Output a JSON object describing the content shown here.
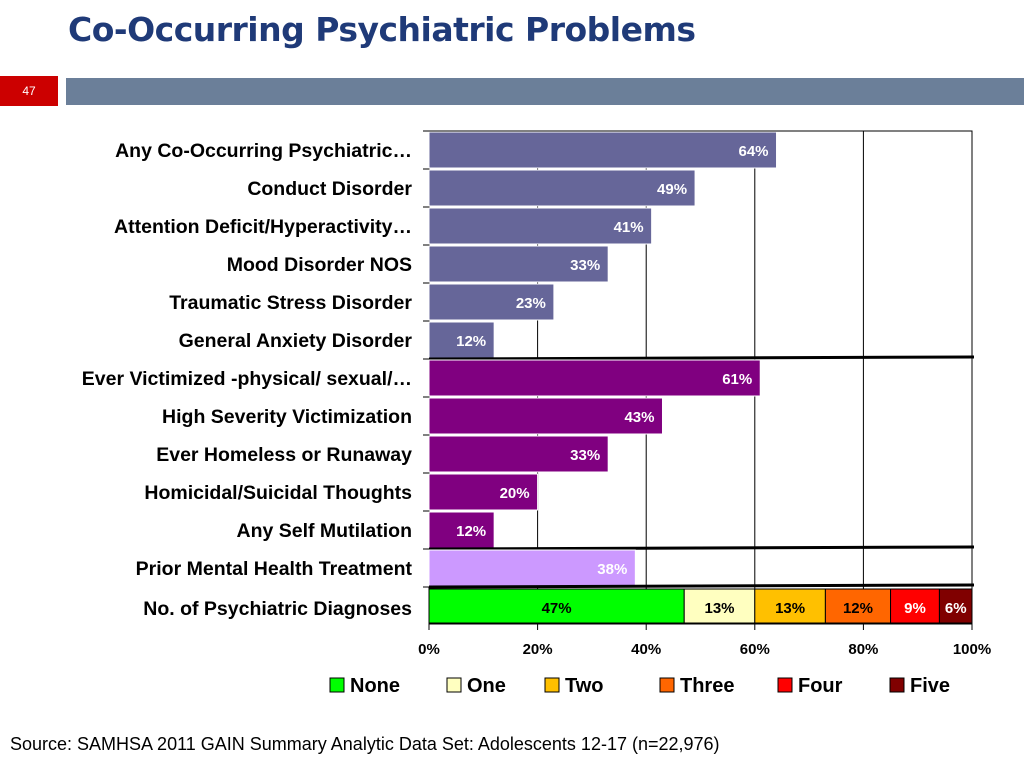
{
  "page": {
    "title": "Co-Occurring Psychiatric Problems",
    "slide_number": "47",
    "source": "Source: SAMHSA 2011 GAIN Summary Analytic Data Set: Adolescents 12-17 (n=22,976)"
  },
  "chart_data": {
    "type": "bar",
    "orientation": "horizontal",
    "xlim": [
      0,
      100
    ],
    "x_ticks": [
      "0%",
      "20%",
      "40%",
      "60%",
      "80%",
      "100%"
    ],
    "grid": true,
    "legend_position": "bottom",
    "groups": [
      {
        "color": "#666699",
        "items": [
          {
            "label": "Any Co-Occurring Psychiatric…",
            "value": 64,
            "value_label": "64%"
          },
          {
            "label": "Conduct Disorder",
            "value": 49,
            "value_label": "49%"
          },
          {
            "label": "Attention Deficit/Hyperactivity…",
            "value": 41,
            "value_label": "41%"
          },
          {
            "label": "Mood Disorder NOS",
            "value": 33,
            "value_label": "33%"
          },
          {
            "label": "Traumatic Stress Disorder",
            "value": 23,
            "value_label": "23%"
          },
          {
            "label": "General Anxiety Disorder",
            "value": 12,
            "value_label": "12%"
          }
        ]
      },
      {
        "color": "#800080",
        "items": [
          {
            "label": "Ever Victimized -physical/ sexual/…",
            "value": 61,
            "value_label": "61%"
          },
          {
            "label": "High Severity Victimization",
            "value": 43,
            "value_label": "43%"
          },
          {
            "label": "Ever Homeless or Runaway",
            "value": 33,
            "value_label": "33%"
          },
          {
            "label": "Homicidal/Suicidal Thoughts",
            "value": 20,
            "value_label": "20%"
          },
          {
            "label": "Any Self Mutilation",
            "value": 12,
            "value_label": "12%"
          }
        ]
      },
      {
        "color": "#cc99ff",
        "items": [
          {
            "label": "Prior Mental Health Treatment",
            "value": 38,
            "value_label": "38%"
          }
        ]
      }
    ],
    "stacked_row": {
      "label": "No. of Psychiatric Diagnoses",
      "segments": [
        {
          "name": "None",
          "value": 47,
          "value_label": "47%",
          "color": "#00ff00"
        },
        {
          "name": "One",
          "value": 13,
          "value_label": "13%",
          "color": "#ffffc0"
        },
        {
          "name": "Two",
          "value": 13,
          "value_label": "13%",
          "color": "#ffc000"
        },
        {
          "name": "Three",
          "value": 12,
          "value_label": "12%",
          "color": "#ff6600"
        },
        {
          "name": "Four",
          "value": 9,
          "value_label": "9%",
          "color": "#ff0000"
        },
        {
          "name": "Five",
          "value": 6,
          "value_label": "6%",
          "color": "#800000"
        }
      ]
    }
  }
}
